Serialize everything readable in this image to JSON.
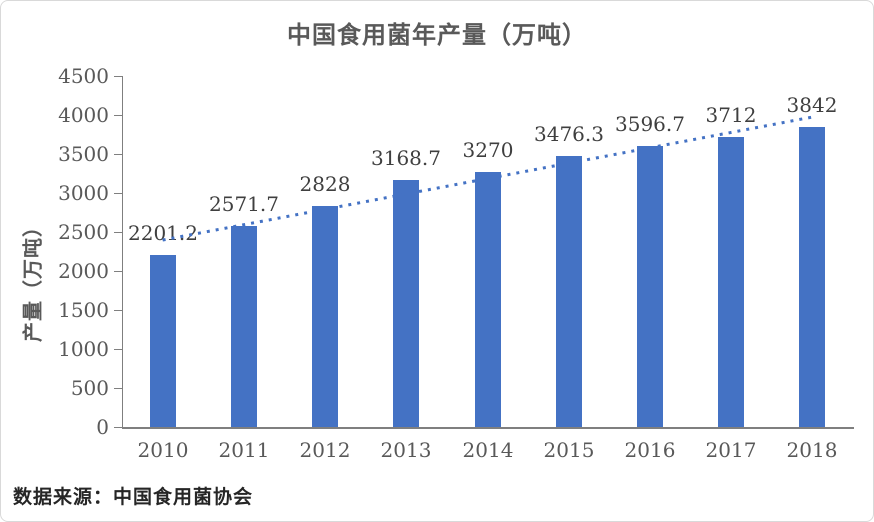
{
  "chart_data": {
    "type": "bar",
    "title": "中国食用菌年产量（万吨）",
    "categories": [
      "2010",
      "2011",
      "2012",
      "2013",
      "2014",
      "2015",
      "2016",
      "2017",
      "2018"
    ],
    "values": [
      2201.2,
      2571.7,
      2828,
      3168.7,
      3270,
      3476.3,
      3596.7,
      3712,
      3842
    ],
    "bar_labels": [
      "2201.2",
      "2571.7",
      "2828",
      "3168.7",
      "3270",
      "3476.3",
      "3596.7",
      "3712",
      "3842"
    ],
    "xlabel": "",
    "ylabel": "产量（万吨）",
    "ylim": [
      0,
      4500
    ],
    "yticks": [
      "0",
      "500",
      "1000",
      "1500",
      "2000",
      "2500",
      "3000",
      "3500",
      "4000",
      "4500"
    ],
    "grid": false,
    "legend": false,
    "bar_color": "#4472C4",
    "axis_color": "#7f7f7f",
    "tick_text_color": "#595959",
    "bar_label_color": "#3f3f3f",
    "trendline": {
      "type": "linear",
      "line_style": "dotted",
      "color": "#4472C4",
      "start_value": 2396.6,
      "end_value": 3973.8
    },
    "source_note": "数据来源：中国食用菌协会"
  }
}
